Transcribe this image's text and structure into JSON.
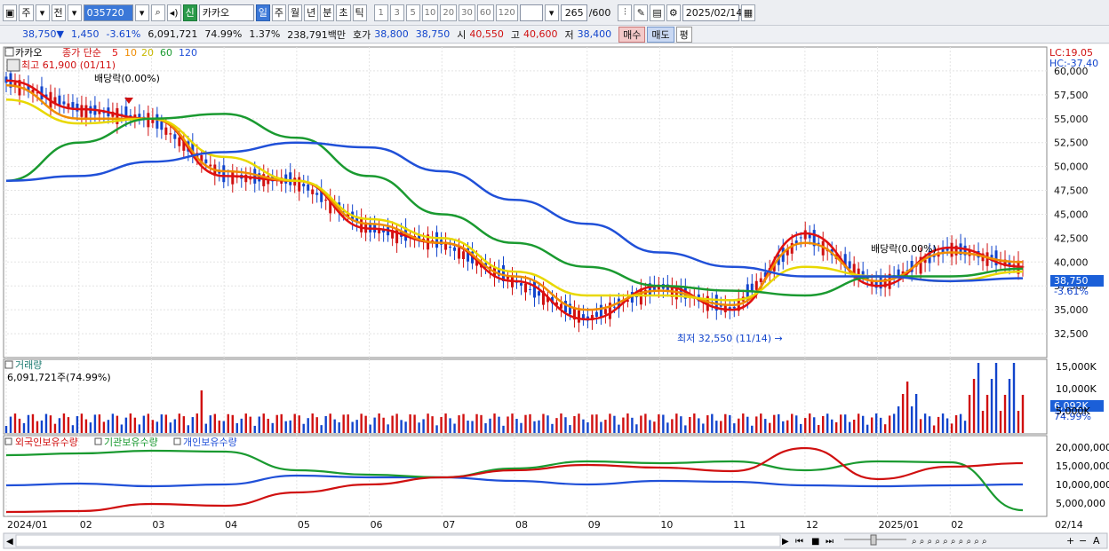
{
  "toolbar": {
    "period_type": "주",
    "market_type": "전",
    "code": "035720",
    "new_badge": "신",
    "name": "카카오",
    "periods": [
      "일",
      "주",
      "월",
      "년",
      "분",
      "초",
      "틱"
    ],
    "active_period": "일",
    "intervals": [
      "1",
      "3",
      "5",
      "10",
      "20",
      "30",
      "60",
      "120"
    ],
    "count_display": "265",
    "count_total": "/600",
    "date": "2025/02/14"
  },
  "quote": {
    "price": "38,750",
    "direction": "▼",
    "change": "1,450",
    "change_pct": "-3.61%",
    "volume": "6,091,721",
    "volume_ratio": "74.99%",
    "turnover": "1.37%",
    "amount": "238,791백만",
    "bid_label": "호가",
    "bid": "38,800",
    "ask": "38,750",
    "open_label": "시",
    "open": "40,550",
    "high_label": "고",
    "high": "40,600",
    "low_label": "저",
    "low": "38,400",
    "buy_label": "매수",
    "sell_label": "매도",
    "eval_label": "평"
  },
  "legend": {
    "name": "카카오",
    "price_type": "종가 단순",
    "ma": [
      {
        "period": "5",
        "color": "#e01010"
      },
      {
        "period": "10",
        "color": "#f08c00"
      },
      {
        "period": "20",
        "color": "#e8d800"
      },
      {
        "period": "60",
        "color": "#1a9a30"
      },
      {
        "period": "120",
        "color": "#2050d8"
      }
    ],
    "high_note": "최고 61,900 (01/11)",
    "low_note": "최저 32,550 (11/14) →",
    "dividend1": "배당락(0.00%)",
    "dividend2": "배당락(0.00%)",
    "lc": "LC:19.05",
    "hc": "HC:-37.40",
    "last_price_tag": "38,750",
    "last_pct_tag": "-3.61%"
  },
  "volume_panel": {
    "title": "거래량",
    "info": "6,091,721주(74.99%)",
    "last_tag": "6,092K",
    "last_pct": "74.99%",
    "ticks": [
      "15,000K",
      "10,000K",
      "5,000K"
    ]
  },
  "holder_panel": {
    "labels": [
      "외국인보유수량",
      "기관보유수량",
      "개인보유수량"
    ],
    "colors": [
      "#2050d8",
      "#1a9a30",
      "#d01010"
    ],
    "ticks": [
      "20,000,000",
      "15,000,000",
      "10,000,000",
      "5,000,000"
    ]
  },
  "x_axis": [
    "2024/01",
    "02",
    "03",
    "04",
    "05",
    "06",
    "07",
    "08",
    "09",
    "10",
    "11",
    "12",
    "2025/01",
    "02",
    "02/14"
  ],
  "chart_data": {
    "type": "line",
    "ylim": [
      30000,
      62500
    ],
    "yticks": [
      32500,
      35000,
      37500,
      40000,
      42500,
      45000,
      47500,
      50000,
      52500,
      55000,
      57500,
      60000
    ],
    "x": [
      "2024-01",
      "2024-02",
      "2024-03",
      "2024-04",
      "2024-05",
      "2024-06",
      "2024-07",
      "2024-08",
      "2024-09",
      "2024-10",
      "2024-11",
      "2024-12",
      "2025-01",
      "2025-02",
      "2025-02-14"
    ],
    "series": [
      {
        "name": "5",
        "values": [
          59000,
          56000,
          55000,
          49000,
          48500,
          43500,
          42000,
          38000,
          34000,
          37500,
          35000,
          43000,
          37500,
          41500,
          39500
        ]
      },
      {
        "name": "10",
        "values": [
          58500,
          55000,
          55000,
          49500,
          48500,
          44000,
          42000,
          38500,
          35000,
          37000,
          35500,
          42000,
          38000,
          41000,
          40000
        ]
      },
      {
        "name": "20",
        "values": [
          57000,
          54500,
          55000,
          51000,
          48500,
          44500,
          42500,
          39000,
          36500,
          36500,
          36000,
          39500,
          38500,
          38000,
          39000
        ]
      },
      {
        "name": "60",
        "values": [
          48500,
          52500,
          55000,
          55500,
          53000,
          49000,
          45000,
          42000,
          39500,
          37500,
          37000,
          36500,
          38500,
          38500,
          39300
        ]
      },
      {
        "name": "120",
        "values": [
          48500,
          49000,
          50500,
          51500,
          52500,
          52000,
          49500,
          46500,
          44000,
          41000,
          39500,
          38500,
          38500,
          38000,
          38300
        ]
      }
    ]
  }
}
